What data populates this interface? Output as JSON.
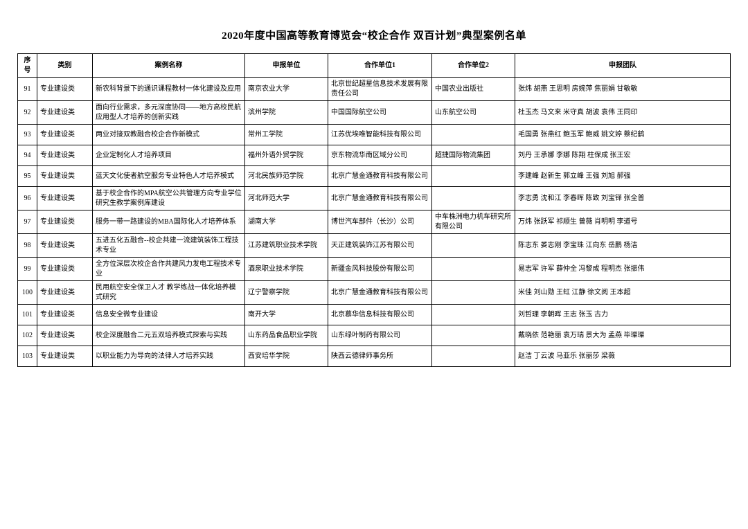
{
  "title": "2020年度中国高等教育博览会“校企合作 双百计划”典型案例名单",
  "headers": {
    "seq": "序号",
    "cat": "类别",
    "case": "案例名称",
    "unit": "申报单位",
    "p1": "合作单位1",
    "p2": "合作单位2",
    "team": "申报团队"
  },
  "rows": [
    {
      "seq": "91",
      "cat": "专业建设类",
      "case": "新农科背景下的通识课程教材一体化建设及应用",
      "unit": "南京农业大学",
      "p1": "北京世纪超星信息技术发展有限责任公司",
      "p2": "中国农业出版社",
      "team": "张炜 胡燕 王思明 房婉萍 焦丽娟 甘敏敏"
    },
    {
      "seq": "92",
      "cat": "专业建设类",
      "case": "面向行业需求，多元深度协同——地方高校民航应用型人才培养的创新实践",
      "unit": "滨州学院",
      "p1": "中国国际航空公司",
      "p2": "山东航空公司",
      "team": "杜玉杰 马文来 米守真 胡波 袁伟 王同印"
    },
    {
      "seq": "93",
      "cat": "专业建设类",
      "case": "两业对接双教融合校企合作新模式",
      "unit": "常州工学院",
      "p1": "江苏优埃唯智能科技有限公司",
      "p2": "",
      "team": "毛国勇 张燕红 鲍玉军 鲍威 姚文婷 蔡纪鹤"
    },
    {
      "seq": "94",
      "cat": "专业建设类",
      "case": "企业定制化人才培养项目",
      "unit": "福州外语外贸学院",
      "p1": "京东物流华南区域分公司",
      "p2": "超捷国际物流集团",
      "team": "刘丹 王承娜 李娜 陈翔 柱保成 张王宏"
    },
    {
      "seq": "95",
      "cat": "专业建设类",
      "case": "蓝天文化使者航空服务专业特色人才培养模式",
      "unit": "河北民族师范学院",
      "p1": "北京广慧金通教育科技有限公司",
      "p2": "",
      "team": "李建峰 赵新生 郭立峰 王强 刘旭 郝强"
    },
    {
      "seq": "96",
      "cat": "专业建设类",
      "case": "基于校企合作的MPA航空公共管理方向专业学位研究生教学案例库建设",
      "unit": "河北师范大学",
      "p1": "北京广慧金通教育科技有限公司",
      "p2": "",
      "team": "李志勇 沈和江 李春晖 陈致 刘宝铎 张全普"
    },
    {
      "seq": "97",
      "cat": "专业建设类",
      "case": "服务一带一路建设的MBA国际化人才培养体系",
      "unit": "湖南大学",
      "p1": "博世汽车部件（长沙）公司",
      "p2": "中车株洲电力机车研究所有限公司",
      "team": "万炜 张跃军 祁顺生 曾薇 肖明明 李道号"
    },
    {
      "seq": "98",
      "cat": "专业建设类",
      "case": "五进五化五融合--校企共建一流建筑装饰工程技术专业",
      "unit": "江苏建筑职业技术学院",
      "p1": "天正建筑装饰江苏有限公司",
      "p2": "",
      "team": "陈志东 娄志刚 李宝珠 江向东 岳鹏 杨洁"
    },
    {
      "seq": "99",
      "cat": "专业建设类",
      "case": "全方位深层次校企合作共建风力发电工程技术专业",
      "unit": "酒泉职业技术学院",
      "p1": "新疆金风科技股份有限公司",
      "p2": "",
      "team": "易志军 许军 薛仲全 冯黎成 程明杰 张振伟"
    },
    {
      "seq": "100",
      "cat": "专业建设类",
      "case": "民用航空安全保卫人才 教学练战一体化培养模式研究",
      "unit": "辽宁警察学院",
      "p1": "北京广慧金通教育科技有限公司",
      "p2": "",
      "team": "米佳 刘山勋 王虹 江静 徐文阅 王本超"
    },
    {
      "seq": "101",
      "cat": "专业建设类",
      "case": "信息安全微专业建设",
      "unit": "南开大学",
      "p1": "北京慕华信息科技有限公司",
      "p2": "",
      "team": "刘哲理 李朝晖 王志 张玉 古力"
    },
    {
      "seq": "102",
      "cat": "专业建设类",
      "case": "校企深度融合二元五双培养模式探索与实践",
      "unit": "山东药品食品职业学院",
      "p1": "山东绿叶制药有限公司",
      "p2": "",
      "team": "戴晓依 范艳丽 袁万瑞 景大为 孟燕 毕璨璨"
    },
    {
      "seq": "103",
      "cat": "专业建设类",
      "case": "以职业能力为导向的法律人才培养实践",
      "unit": "西安培华学院",
      "p1": "陕西云德律师事务所",
      "p2": "",
      "team": "赵洁 丁云波 马亚乐 张丽莎 梁薇"
    }
  ]
}
